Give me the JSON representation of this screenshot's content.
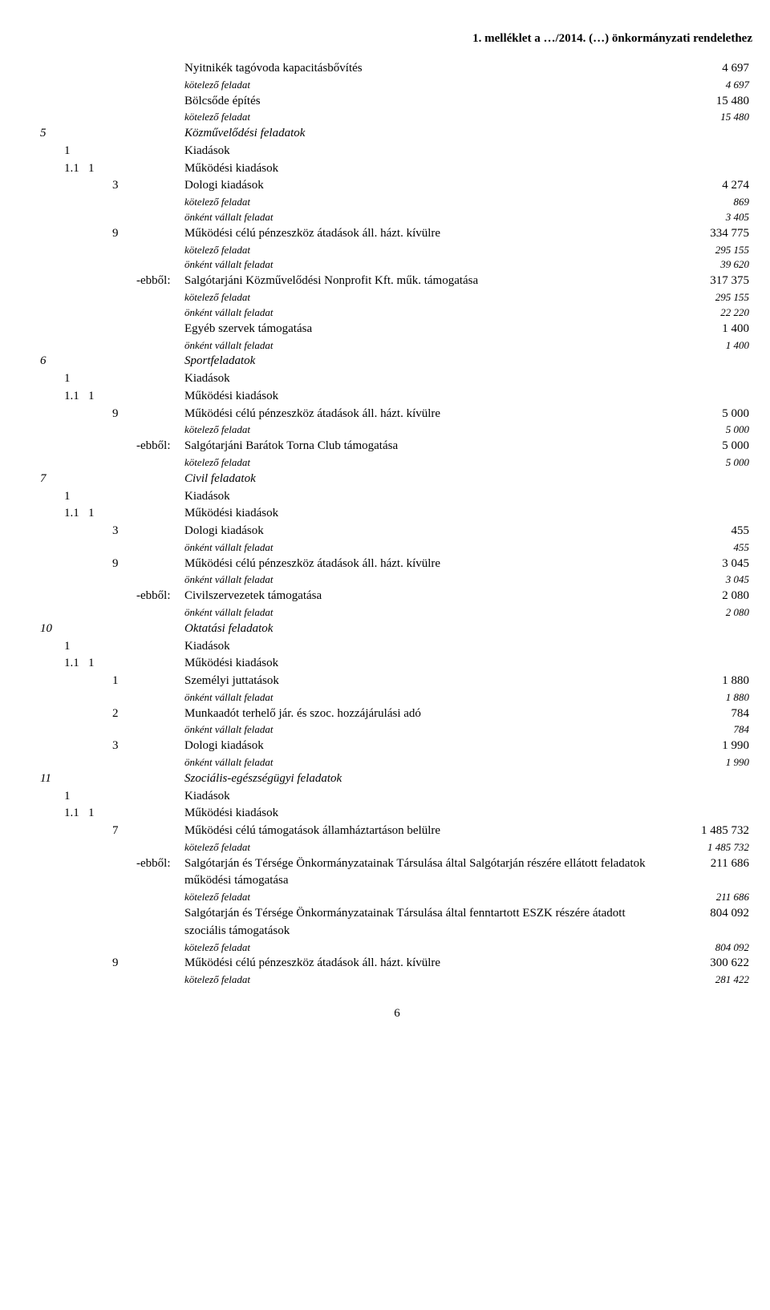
{
  "header": "1. melléklet a …/2014. (…) önkormányzati rendelethez",
  "rows": [
    {
      "c4": "",
      "c5": "",
      "label": "Nyitnikék tagóvoda kapacitásbővítés",
      "val": "4 697",
      "cls": ""
    },
    {
      "c4": "",
      "c5": "",
      "label": "kötelező feladat",
      "val": "4 697",
      "cls": "italic small"
    },
    {
      "c4": "",
      "c5": "",
      "label": "Bölcsőde építés",
      "val": "15 480",
      "cls": ""
    },
    {
      "c4": "",
      "c5": "",
      "label": "kötelező feladat",
      "val": "15 480",
      "cls": "italic small"
    },
    {
      "c1": "5",
      "label": "Közművelődési feladatok",
      "val": "",
      "cls": "italic"
    },
    {
      "c2": "1",
      "label": "Kiadások",
      "val": "",
      "cls": ""
    },
    {
      "c2": "1.1",
      "c3": "1",
      "label": "Működési kiadások",
      "val": "",
      "cls": ""
    },
    {
      "c4": "3",
      "label": "Dologi kiadások",
      "val": "4 274",
      "cls": ""
    },
    {
      "c4": "",
      "c5": "",
      "label": "kötelező feladat",
      "val": "869",
      "cls": "italic small"
    },
    {
      "c4": "",
      "c5": "",
      "label": "önként vállalt feladat",
      "val": "3 405",
      "cls": "italic small"
    },
    {
      "c4": "9",
      "label": "Működési célú pénzeszköz átadások áll. házt. kívülre",
      "val": "334 775",
      "cls": ""
    },
    {
      "c4": "",
      "c5": "",
      "label": "kötelező feladat",
      "val": "295 155",
      "cls": "italic small"
    },
    {
      "c4": "",
      "c5": "",
      "label": "önként vállalt feladat",
      "val": "39 620",
      "cls": "italic small"
    },
    {
      "c4": "",
      "c5": "-ebből:",
      "label": "Salgótarjáni Közművelődési Nonprofit Kft. műk. támogatása",
      "val": "317 375",
      "cls": ""
    },
    {
      "c4": "",
      "c5": "",
      "label": "kötelező feladat",
      "val": "295 155",
      "cls": "italic small"
    },
    {
      "c4": "",
      "c5": "",
      "label": "önként vállalt feladat",
      "val": "22 220",
      "cls": "italic small"
    },
    {
      "c4": "",
      "c5": "",
      "label": "Egyéb szervek támogatása",
      "val": "1 400",
      "cls": ""
    },
    {
      "c4": "",
      "c5": "",
      "label": "önként vállalt feladat",
      "val": "1 400",
      "cls": "italic small"
    },
    {
      "c1": "6",
      "label": "Sportfeladatok",
      "val": "",
      "cls": "italic"
    },
    {
      "c2": "1",
      "label": "Kiadások",
      "val": "",
      "cls": ""
    },
    {
      "c2": "1.1",
      "c3": "1",
      "label": "Működési kiadások",
      "val": "",
      "cls": ""
    },
    {
      "c4": "9",
      "label": "Működési célú pénzeszköz átadások áll. házt. kívülre",
      "val": "5 000",
      "cls": ""
    },
    {
      "c4": "",
      "c5": "",
      "label": "kötelező feladat",
      "val": "5 000",
      "cls": "italic small"
    },
    {
      "c4": "",
      "c5": "-ebből:",
      "label": "Salgótarjáni Barátok Torna Club támogatása",
      "val": "5 000",
      "cls": ""
    },
    {
      "c4": "",
      "c5": "",
      "label": "kötelező feladat",
      "val": "5 000",
      "cls": "italic small"
    },
    {
      "c1": "7",
      "label": "Civil  feladatok",
      "val": "",
      "cls": "italic"
    },
    {
      "c2": "1",
      "label": "Kiadások",
      "val": "",
      "cls": ""
    },
    {
      "c2": "1.1",
      "c3": "1",
      "label": "Működési kiadások",
      "val": "",
      "cls": ""
    },
    {
      "c4": "3",
      "label": "Dologi kiadások",
      "val": "455",
      "cls": ""
    },
    {
      "c4": "",
      "c5": "",
      "label": "önként vállalt feladat",
      "val": "455",
      "cls": "italic small"
    },
    {
      "c4": "9",
      "label": "Működési célú pénzeszköz átadások áll. házt. kívülre",
      "val": "3 045",
      "cls": ""
    },
    {
      "c4": "",
      "c5": "",
      "label": "önként vállalt feladat",
      "val": "3 045",
      "cls": "italic small"
    },
    {
      "c4": "",
      "c5": "-ebből:",
      "label": "Civilszervezetek támogatása",
      "val": "2 080",
      "cls": ""
    },
    {
      "c4": "",
      "c5": "",
      "label": "önként vállalt feladat",
      "val": "2 080",
      "cls": "italic small"
    },
    {
      "c1": "10",
      "label": "Oktatási feladatok",
      "val": "",
      "cls": "italic"
    },
    {
      "c2": "1",
      "label": "Kiadások",
      "val": "",
      "cls": ""
    },
    {
      "c2": "1.1",
      "c3": "1",
      "label": "Működési kiadások",
      "val": "",
      "cls": ""
    },
    {
      "c4": "1",
      "label": "Személyi juttatások",
      "val": "1 880",
      "cls": ""
    },
    {
      "c4": "",
      "c5": "",
      "label": "önként vállalt feladat",
      "val": "1 880",
      "cls": "italic small"
    },
    {
      "c4": "2",
      "label": "Munkaadót terhelő jár. és szoc. hozzájárulási adó",
      "val": "784",
      "cls": ""
    },
    {
      "c4": "",
      "c5": "",
      "label": "önként vállalt feladat",
      "val": "784",
      "cls": "italic small"
    },
    {
      "c4": "3",
      "label": "Dologi kiadások",
      "val": "1 990",
      "cls": ""
    },
    {
      "c4": "",
      "c5": "",
      "label": "önként vállalt feladat",
      "val": "1 990",
      "cls": "italic small"
    },
    {
      "c1": "11",
      "label": "Szociális-egészségügyi feladatok",
      "val": "",
      "cls": "italic"
    },
    {
      "c2": "1",
      "label": "Kiadások",
      "val": "",
      "cls": ""
    },
    {
      "c2": "1.1",
      "c3": "1",
      "label": "Működési kiadások",
      "val": "",
      "cls": ""
    },
    {
      "c4": "7",
      "label": "Működési célú támogatások államháztartáson belülre",
      "val": "1 485 732",
      "cls": ""
    },
    {
      "c4": "",
      "c5": "",
      "label": "kötelező feladat",
      "val": "1 485 732",
      "cls": "italic small"
    },
    {
      "c4": "",
      "c5": "-ebből:",
      "label": "Salgótarján és Térsége Önkormányzatainak Társulása által Salgótarján részére ellátott feladatok működési támogatása",
      "val": "211 686",
      "cls": ""
    },
    {
      "c4": "",
      "c5": "",
      "label": "kötelező feladat",
      "val": "211 686",
      "cls": "italic small"
    },
    {
      "c4": "",
      "c5": "",
      "label": "Salgótarján és Térsége Önkormányzatainak Társulása által fenntartott ESZK részére átadott szociális támogatások",
      "val": "804 092",
      "cls": ""
    },
    {
      "c4": "",
      "c5": "",
      "label": "kötelező feladat",
      "val": "804 092",
      "cls": "italic small"
    },
    {
      "c4": "9",
      "label": "Működési célú pénzeszköz átadások áll. házt. kívülre",
      "val": "300 622",
      "cls": ""
    },
    {
      "c4": "",
      "c5": "",
      "label": "kötelező feladat",
      "val": "281 422",
      "cls": "italic small"
    }
  ],
  "pagenum": "6"
}
